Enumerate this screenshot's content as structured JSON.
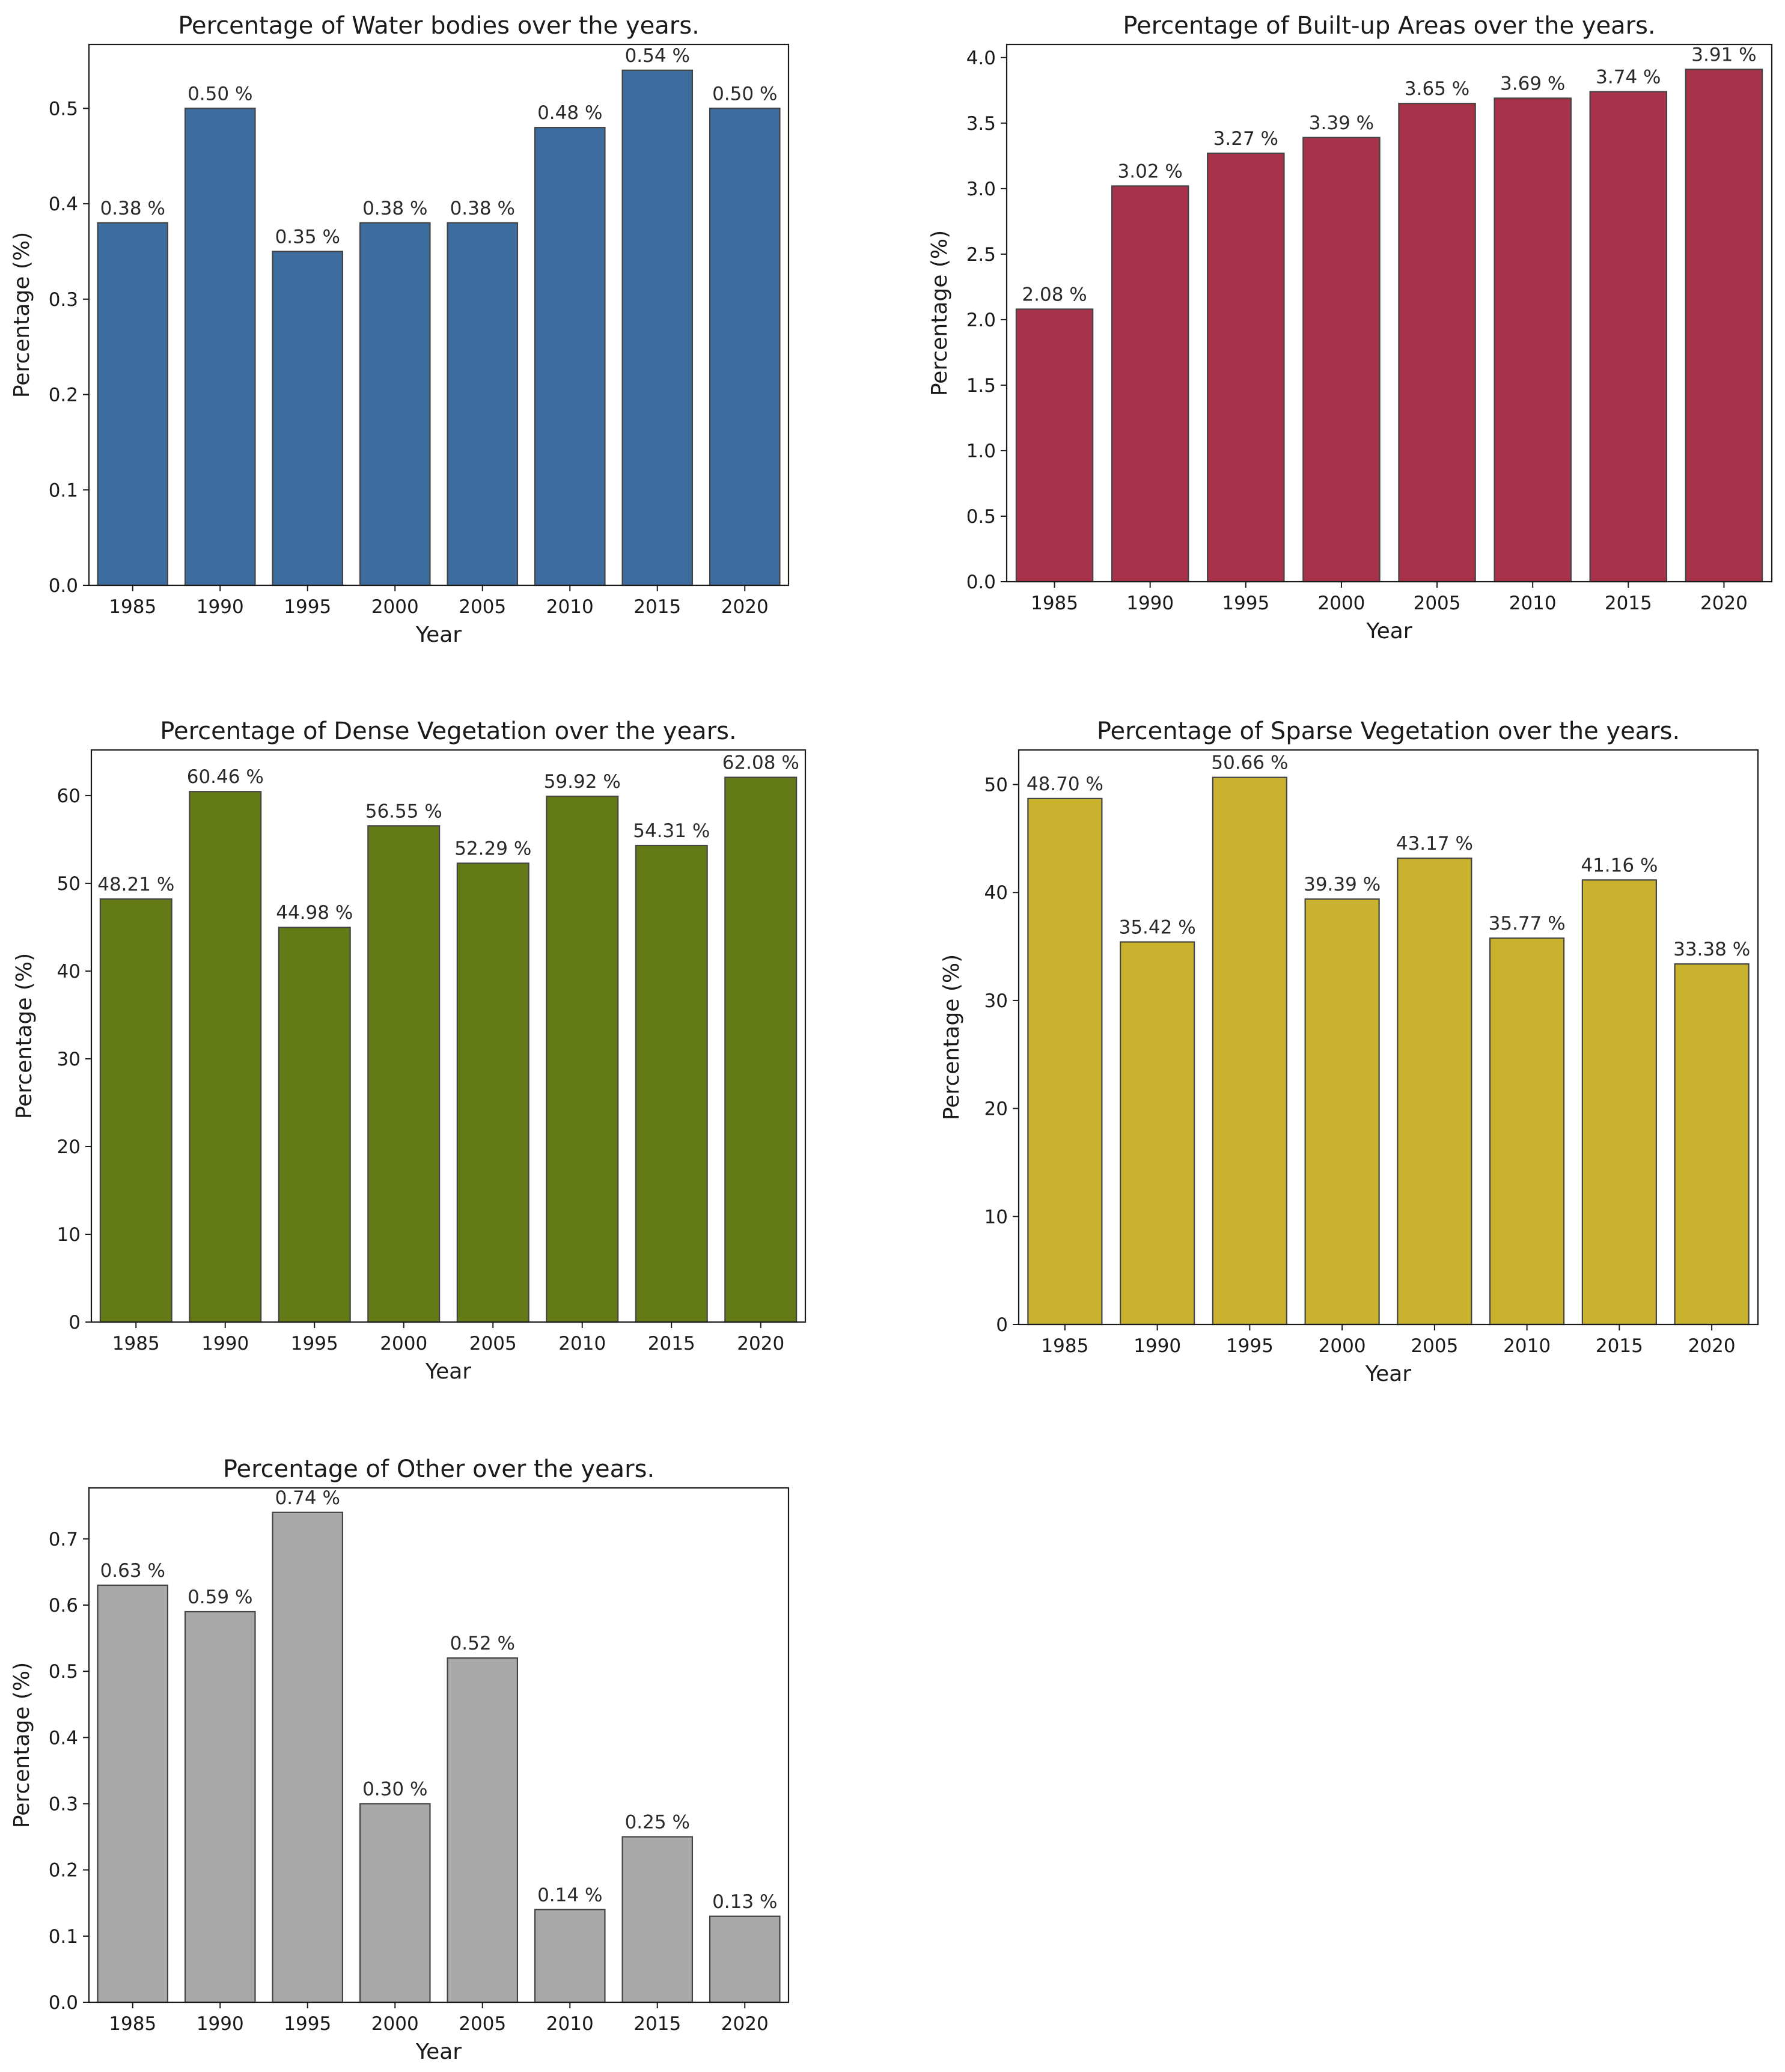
{
  "chart_data": [
    {
      "type": "bar",
      "title": "Percentage of Water bodies over the years.",
      "xlabel": "Year",
      "ylabel": "Percentage (%)",
      "categories": [
        "1985",
        "1990",
        "1995",
        "2000",
        "2005",
        "2010",
        "2015",
        "2020"
      ],
      "values": [
        0.38,
        0.5,
        0.35,
        0.38,
        0.38,
        0.48,
        0.54,
        0.5
      ],
      "data_labels": [
        "0.38 %",
        "0.50 %",
        "0.35 %",
        "0.38 %",
        "0.38 %",
        "0.48 %",
        "0.54 %",
        "0.50 %"
      ],
      "ylim": [
        0,
        0.567
      ],
      "yticks": [
        0.0,
        0.1,
        0.2,
        0.3,
        0.4,
        0.5
      ],
      "ytick_labels": [
        "0.0",
        "0.1",
        "0.2",
        "0.3",
        "0.4",
        "0.5"
      ],
      "color": "#3d6d9e"
    },
    {
      "type": "bar",
      "title": "Percentage of Built-up Areas over the years.",
      "xlabel": "Year",
      "ylabel": "Percentage (%)",
      "categories": [
        "1985",
        "1990",
        "1995",
        "2000",
        "2005",
        "2010",
        "2015",
        "2020"
      ],
      "values": [
        2.08,
        3.02,
        3.27,
        3.39,
        3.65,
        3.69,
        3.74,
        3.91
      ],
      "data_labels": [
        "2.08 %",
        "3.02 %",
        "3.27 %",
        "3.39 %",
        "3.65 %",
        "3.69 %",
        "3.74 %",
        "3.91 %"
      ],
      "ylim": [
        0,
        4.1
      ],
      "yticks": [
        0.0,
        0.5,
        1.0,
        1.5,
        2.0,
        2.5,
        3.0,
        3.5,
        4.0
      ],
      "ytick_labels": [
        "0.0",
        "0.5",
        "1.0",
        "1.5",
        "2.0",
        "2.5",
        "3.0",
        "3.5",
        "4.0"
      ],
      "color": "#a8324a"
    },
    {
      "type": "bar",
      "title": "Percentage of Dense Vegetation over the years.",
      "xlabel": "Year",
      "ylabel": "Percentage (%)",
      "categories": [
        "1985",
        "1990",
        "1995",
        "2000",
        "2005",
        "2010",
        "2015",
        "2020"
      ],
      "values": [
        48.21,
        60.46,
        44.98,
        56.55,
        52.29,
        59.92,
        54.31,
        62.08
      ],
      "data_labels": [
        "48.21 %",
        "60.46 %",
        "44.98 %",
        "56.55 %",
        "52.29 %",
        "59.92 %",
        "54.31 %",
        "62.08 %"
      ],
      "ylim": [
        0,
        65.2
      ],
      "yticks": [
        0,
        10,
        20,
        30,
        40,
        50,
        60
      ],
      "ytick_labels": [
        "0",
        "10",
        "20",
        "30",
        "40",
        "50",
        "60"
      ],
      "color": "#637a16"
    },
    {
      "type": "bar",
      "title": "Percentage of Sparse Vegetation over the years.",
      "xlabel": "Year",
      "ylabel": "Percentage (%)",
      "categories": [
        "1985",
        "1990",
        "1995",
        "2000",
        "2005",
        "2010",
        "2015",
        "2020"
      ],
      "values": [
        48.7,
        35.42,
        50.66,
        39.39,
        43.17,
        35.77,
        41.16,
        33.38
      ],
      "data_labels": [
        "48.70 %",
        "35.42 %",
        "50.66 %",
        "39.39 %",
        "43.17 %",
        "35.77 %",
        "41.16 %",
        "33.38 %"
      ],
      "ylim": [
        0,
        53.2
      ],
      "yticks": [
        0,
        10,
        20,
        30,
        40,
        50
      ],
      "ytick_labels": [
        "0",
        "10",
        "20",
        "30",
        "40",
        "50"
      ],
      "color": "#c9b22e"
    },
    {
      "type": "bar",
      "title": "Percentage of Other over the years.",
      "xlabel": "Year",
      "ylabel": "Percentage (%)",
      "categories": [
        "1985",
        "1990",
        "1995",
        "2000",
        "2005",
        "2010",
        "2015",
        "2020"
      ],
      "values": [
        0.63,
        0.59,
        0.74,
        0.3,
        0.52,
        0.14,
        0.25,
        0.13
      ],
      "data_labels": [
        "0.63 %",
        "0.59 %",
        "0.74 %",
        "0.30 %",
        "0.52 %",
        "0.14 %",
        "0.25 %",
        "0.13 %"
      ],
      "ylim": [
        0,
        0.777
      ],
      "yticks": [
        0.0,
        0.1,
        0.2,
        0.3,
        0.4,
        0.5,
        0.6,
        0.7
      ],
      "ytick_labels": [
        "0.0",
        "0.1",
        "0.2",
        "0.3",
        "0.4",
        "0.5",
        "0.6",
        "0.7"
      ],
      "color": "#a9a9a9"
    }
  ]
}
